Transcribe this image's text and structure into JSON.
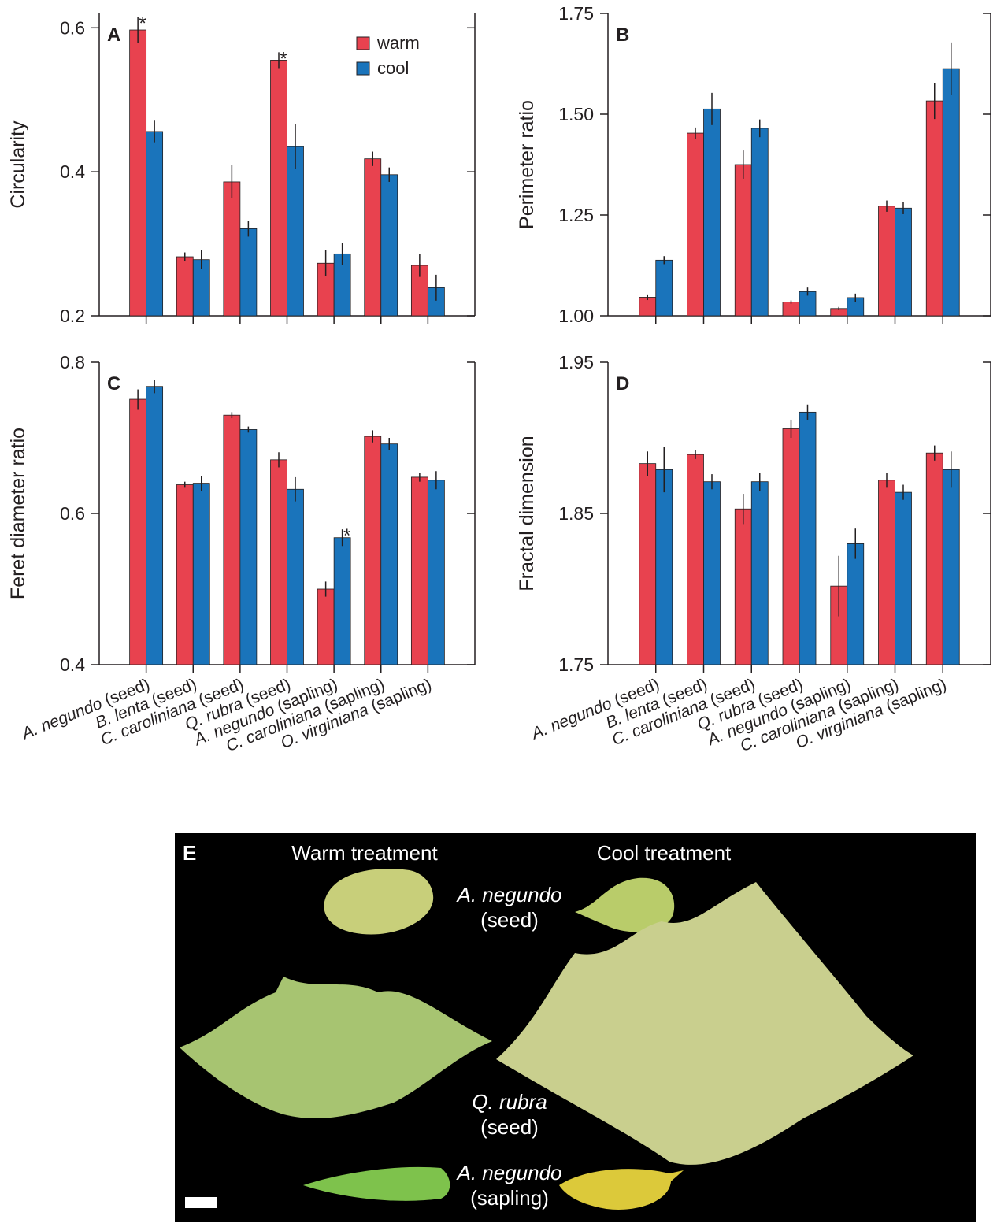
{
  "chart_data": [
    {
      "type": "bar",
      "panel_label": "A",
      "ylabel": "Circularity",
      "categories": [
        null,
        null,
        null,
        null,
        null,
        null,
        null
      ],
      "ylim": [
        0.2,
        0.62
      ],
      "yticks": [
        0.2,
        0.4,
        0.6
      ],
      "legend": "upper right",
      "series": [
        {
          "name": "warm",
          "color": "#e8424f",
          "values": [
            0.597,
            0.282,
            0.386,
            0.555,
            0.273,
            0.418,
            0.27
          ],
          "errors": [
            0.018,
            0.006,
            0.023,
            0.011,
            0.018,
            0.01,
            0.016
          ],
          "annotations": [
            "*",
            null,
            null,
            "*",
            null,
            null,
            null
          ]
        },
        {
          "name": "cool",
          "color": "#1a74bb",
          "values": [
            0.456,
            0.278,
            0.321,
            0.435,
            0.286,
            0.396,
            0.239
          ],
          "errors": [
            0.015,
            0.013,
            0.011,
            0.031,
            0.015,
            0.01,
            0.018
          ]
        }
      ]
    },
    {
      "type": "bar",
      "panel_label": "B",
      "ylabel": "Perimeter ratio",
      "categories": [
        null,
        null,
        null,
        null,
        null,
        null,
        null
      ],
      "ylim": [
        1.0,
        1.75
      ],
      "yticks": [
        {
          "value": 1.0,
          "label": "1.00"
        },
        {
          "value": 1.25,
          "label": "1.25"
        },
        {
          "value": 1.5,
          "label": "1.50"
        },
        {
          "value": 1.75,
          "label": "1.75"
        }
      ],
      "series": [
        {
          "color": "#e8424f",
          "values": [
            1.046,
            1.453,
            1.375,
            1.034,
            1.018,
            1.272,
            1.533
          ],
          "errors": [
            0.007,
            0.014,
            0.035,
            0.004,
            0.004,
            0.014,
            0.045
          ]
        },
        {
          "color": "#1a74bb",
          "values": [
            1.138,
            1.513,
            1.465,
            1.06,
            1.045,
            1.267,
            1.613
          ],
          "errors": [
            0.01,
            0.04,
            0.022,
            0.01,
            0.01,
            0.015,
            0.065
          ]
        }
      ]
    },
    {
      "type": "bar",
      "panel_label": "C",
      "ylabel": "Feret diameter ratio",
      "categories": [
        "A. negundo (seed)",
        "B. lenta (seed)",
        "C. caroliniana (seed)",
        "Q. rubra (seed)",
        "A. negundo (sapling)",
        "C. caroliniana (sapling)",
        "O. virginiana (sapling)"
      ],
      "ylim": [
        0.4,
        0.8
      ],
      "yticks": [
        0.4,
        0.6,
        0.8
      ],
      "series": [
        {
          "color": "#e8424f",
          "values": [
            0.751,
            0.638,
            0.73,
            0.671,
            0.5,
            0.702,
            0.648
          ],
          "errors": [
            0.013,
            0.004,
            0.004,
            0.01,
            0.01,
            0.008,
            0.006
          ]
        },
        {
          "color": "#1a74bb",
          "values": [
            0.768,
            0.64,
            0.711,
            0.632,
            0.568,
            0.692,
            0.644
          ],
          "errors": [
            0.009,
            0.01,
            0.004,
            0.016,
            0.011,
            0.008,
            0.012
          ],
          "annotations": [
            null,
            null,
            null,
            null,
            "*",
            null,
            null
          ]
        }
      ]
    },
    {
      "type": "bar",
      "panel_label": "D",
      "ylabel": "Fractal dimension",
      "categories": [
        "A. negundo (seed)",
        "B. lenta (seed)",
        "C. caroliniana (seed)",
        "Q. rubra (seed)",
        "A. negundo (sapling)",
        "C. caroliniana (sapling)",
        "O. virginiana (sapling)"
      ],
      "ylim": [
        1.75,
        1.95
      ],
      "yticks": [
        1.75,
        1.85,
        1.95
      ],
      "series": [
        {
          "color": "#e8424f",
          "values": [
            1.883,
            1.889,
            1.853,
            1.906,
            1.802,
            1.872,
            1.89
          ],
          "errors": [
            0.008,
            0.003,
            0.01,
            0.006,
            0.02,
            0.005,
            0.005
          ]
        },
        {
          "color": "#1a74bb",
          "values": [
            1.879,
            1.871,
            1.871,
            1.917,
            1.83,
            1.864,
            1.879
          ],
          "errors": [
            0.015,
            0.005,
            0.006,
            0.005,
            0.01,
            0.005,
            0.012
          ]
        }
      ]
    }
  ],
  "photo": {
    "panel_label": "E",
    "headers": [
      "Warm treatment",
      "Cool treatment"
    ],
    "rows": [
      {
        "species": "A. negundo",
        "stage": "(seed)"
      },
      {
        "species": "Q. rubra",
        "stage": "(seed)"
      },
      {
        "species": "A. negundo",
        "stage": "(sapling)"
      }
    ]
  }
}
